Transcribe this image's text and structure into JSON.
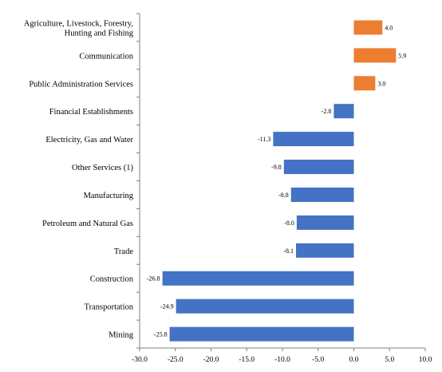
{
  "chart_data": {
    "type": "bar",
    "orientation": "horizontal",
    "categories": [
      [
        "Agriculture, Livestock, Forestry,",
        "Hunting and Fishing"
      ],
      [
        "Communication"
      ],
      [
        "Public Administration Services"
      ],
      [
        "Financial Establishments"
      ],
      [
        "Electricity, Gas and Water"
      ],
      [
        "Other Services (1)"
      ],
      [
        "Manufacturing"
      ],
      [
        "Petroleum and Natural Gas"
      ],
      [
        "Trade"
      ],
      [
        "Construction"
      ],
      [
        "Transportation"
      ],
      [
        "Mining"
      ]
    ],
    "values": [
      4.0,
      5.9,
      3.0,
      -2.8,
      -11.3,
      -9.8,
      -8.8,
      -8.0,
      -8.1,
      -26.8,
      -24.9,
      -25.8
    ],
    "value_labels": [
      "4.0",
      "5.9",
      "3.0",
      "-2.8",
      "-11.3",
      "-9.8",
      "-8.8",
      "-8.0",
      "-8.1",
      "-26.8",
      "-24.9",
      "-25.8"
    ],
    "xlim": [
      -30,
      10
    ],
    "xticks": [
      -30,
      -25,
      -20,
      -15,
      -10,
      -5,
      0,
      5,
      10
    ],
    "xtick_labels": [
      "-30.0",
      "-25.0",
      "-20.0",
      "-15.0",
      "-10.0",
      "-5.0",
      "0.0",
      "5.0",
      "10.0"
    ],
    "title": "",
    "xlabel": "",
    "ylabel": "",
    "grid": false,
    "colors": {
      "positive": "#ED7D31",
      "negative": "#4472C4"
    }
  }
}
